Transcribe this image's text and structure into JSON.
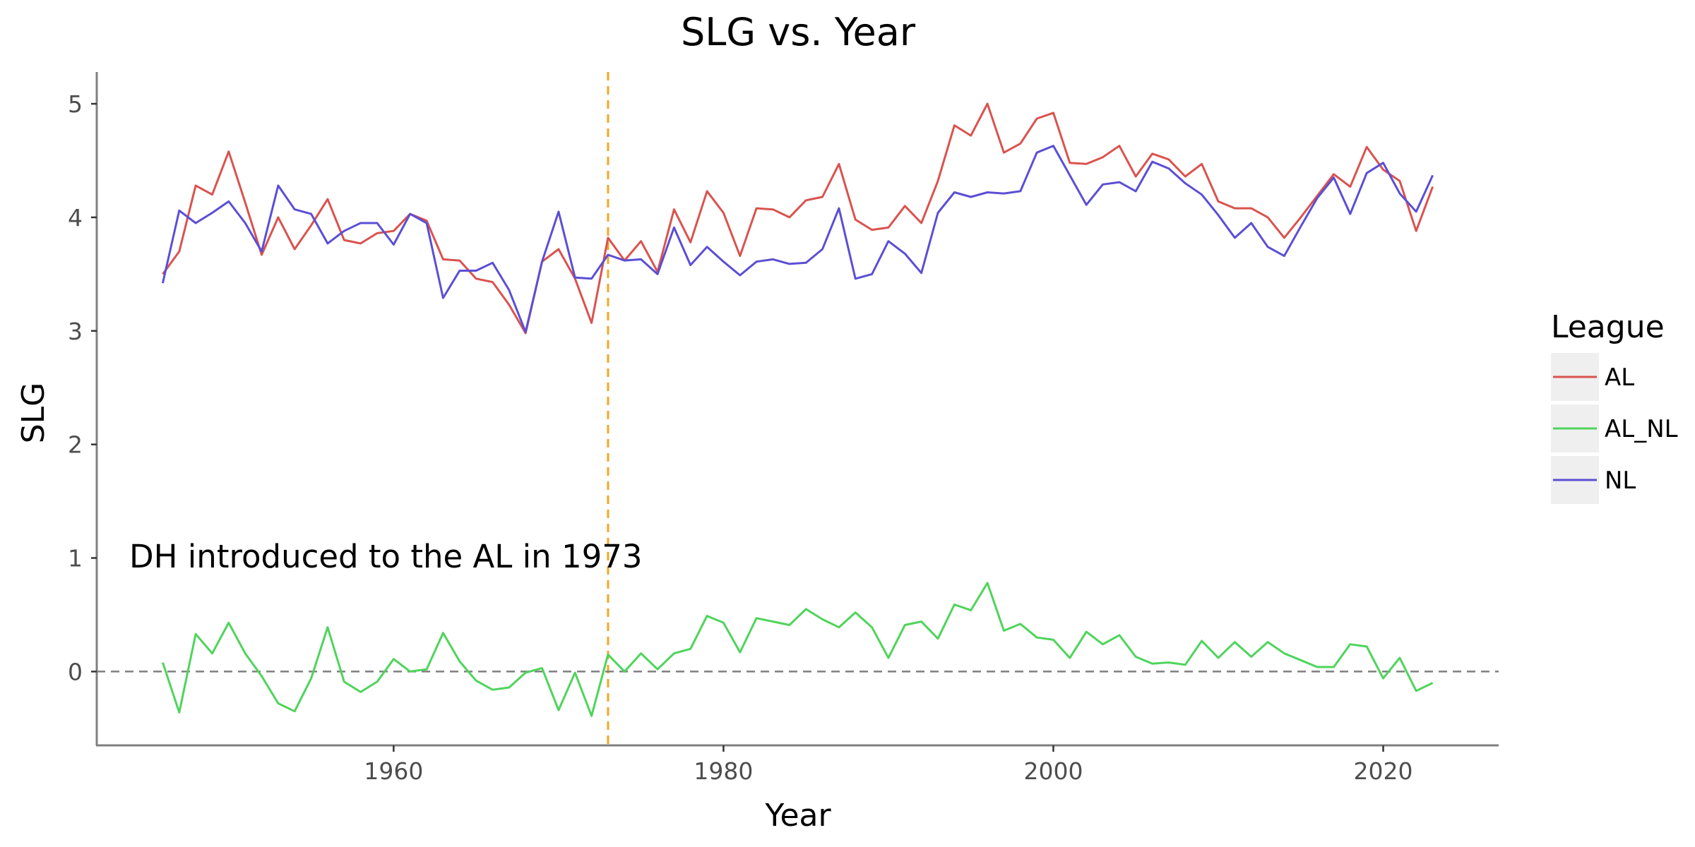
{
  "chart_data": {
    "type": "line",
    "title": "SLG vs. Year",
    "xlabel": "Year",
    "ylabel": "SLG",
    "xlim": [
      1942,
      2027
    ],
    "ylim": [
      -0.65,
      5.28
    ],
    "x_ticks": [
      1960,
      1980,
      2000,
      2020
    ],
    "y_ticks": [
      0,
      1,
      2,
      3,
      4,
      5
    ],
    "grid": false,
    "legend": {
      "title": "League",
      "position": "right"
    },
    "x": [
      1946,
      1947,
      1948,
      1949,
      1950,
      1951,
      1952,
      1953,
      1954,
      1955,
      1956,
      1957,
      1958,
      1959,
      1960,
      1961,
      1962,
      1963,
      1964,
      1965,
      1966,
      1967,
      1968,
      1969,
      1970,
      1971,
      1972,
      1973,
      1974,
      1975,
      1976,
      1977,
      1978,
      1979,
      1980,
      1981,
      1982,
      1983,
      1984,
      1985,
      1986,
      1987,
      1988,
      1989,
      1990,
      1991,
      1992,
      1993,
      1994,
      1995,
      1996,
      1997,
      1998,
      1999,
      2000,
      2001,
      2002,
      2003,
      2004,
      2005,
      2006,
      2007,
      2008,
      2009,
      2010,
      2011,
      2012,
      2013,
      2014,
      2015,
      2016,
      2017,
      2018,
      2019,
      2020,
      2021,
      2022,
      2023
    ],
    "series": [
      {
        "name": "AL",
        "color": "#d9534f",
        "values": [
          3.5,
          3.7,
          4.28,
          4.2,
          4.58,
          4.13,
          3.67,
          4.0,
          3.72,
          3.93,
          4.16,
          3.8,
          3.77,
          3.86,
          3.88,
          4.03,
          3.97,
          3.63,
          3.62,
          3.46,
          3.43,
          3.23,
          2.98,
          3.61,
          3.72,
          3.46,
          3.07,
          3.82,
          3.62,
          3.79,
          3.52,
          4.07,
          3.78,
          4.23,
          4.04,
          3.66,
          4.08,
          4.07,
          4.0,
          4.15,
          4.18,
          4.47,
          3.98,
          3.89,
          3.91,
          4.1,
          3.95,
          4.32,
          4.81,
          4.72,
          5.0,
          4.57,
          4.65,
          4.87,
          4.92,
          4.48,
          4.47,
          4.53,
          4.63,
          4.36,
          4.56,
          4.51,
          4.36,
          4.47,
          4.14,
          4.08,
          4.08,
          4.0,
          3.82,
          4.0,
          4.19,
          4.38,
          4.27,
          4.62,
          4.42,
          4.32,
          3.88,
          4.27
        ]
      },
      {
        "name": "AL_NL",
        "color": "#4fd45b",
        "values": [
          0.08,
          -0.36,
          0.33,
          0.16,
          0.43,
          0.16,
          -0.04,
          -0.28,
          -0.35,
          -0.06,
          0.39,
          -0.09,
          -0.18,
          -0.09,
          0.11,
          0.0,
          0.02,
          0.34,
          0.09,
          -0.08,
          -0.16,
          -0.14,
          -0.01,
          0.03,
          -0.34,
          -0.01,
          -0.39,
          0.15,
          0.0,
          0.16,
          0.02,
          0.16,
          0.2,
          0.49,
          0.43,
          0.17,
          0.47,
          0.44,
          0.41,
          0.55,
          0.46,
          0.39,
          0.52,
          0.39,
          0.12,
          0.41,
          0.44,
          0.29,
          0.59,
          0.54,
          0.78,
          0.36,
          0.42,
          0.3,
          0.28,
          0.12,
          0.35,
          0.24,
          0.32,
          0.13,
          0.07,
          0.08,
          0.06,
          0.27,
          0.12,
          0.26,
          0.13,
          0.26,
          0.16,
          0.1,
          0.04,
          0.04,
          0.24,
          0.22,
          -0.06,
          0.12,
          -0.17,
          -0.1
        ]
      },
      {
        "name": "NL",
        "color": "#5b4fd4",
        "values": [
          3.42,
          4.06,
          3.95,
          4.04,
          4.14,
          3.95,
          3.7,
          4.28,
          4.07,
          4.03,
          3.77,
          3.88,
          3.95,
          3.95,
          3.76,
          4.03,
          3.95,
          3.29,
          3.53,
          3.53,
          3.6,
          3.36,
          2.99,
          3.61,
          4.05,
          3.47,
          3.46,
          3.67,
          3.62,
          3.63,
          3.5,
          3.91,
          3.58,
          3.74,
          3.61,
          3.49,
          3.61,
          3.63,
          3.59,
          3.6,
          3.72,
          4.08,
          3.46,
          3.5,
          3.79,
          3.68,
          3.51,
          4.04,
          4.22,
          4.18,
          4.22,
          4.21,
          4.23,
          4.57,
          4.63,
          4.37,
          4.11,
          4.29,
          4.31,
          4.23,
          4.49,
          4.43,
          4.3,
          4.2,
          4.02,
          3.82,
          3.95,
          3.74,
          3.66,
          3.92,
          4.17,
          4.35,
          4.03,
          4.39,
          4.48,
          4.21,
          4.05,
          4.37
        ]
      }
    ],
    "reference_lines": [
      {
        "orientation": "vertical",
        "value": 1973,
        "color": "#f5a623",
        "style": "dashed"
      },
      {
        "orientation": "horizontal",
        "value": 0,
        "color": "#7f7f7f",
        "style": "dashed"
      }
    ],
    "annotation": {
      "text": "DH introduced to the AL in 1973",
      "x": 1943.8,
      "y": 1.0
    }
  }
}
